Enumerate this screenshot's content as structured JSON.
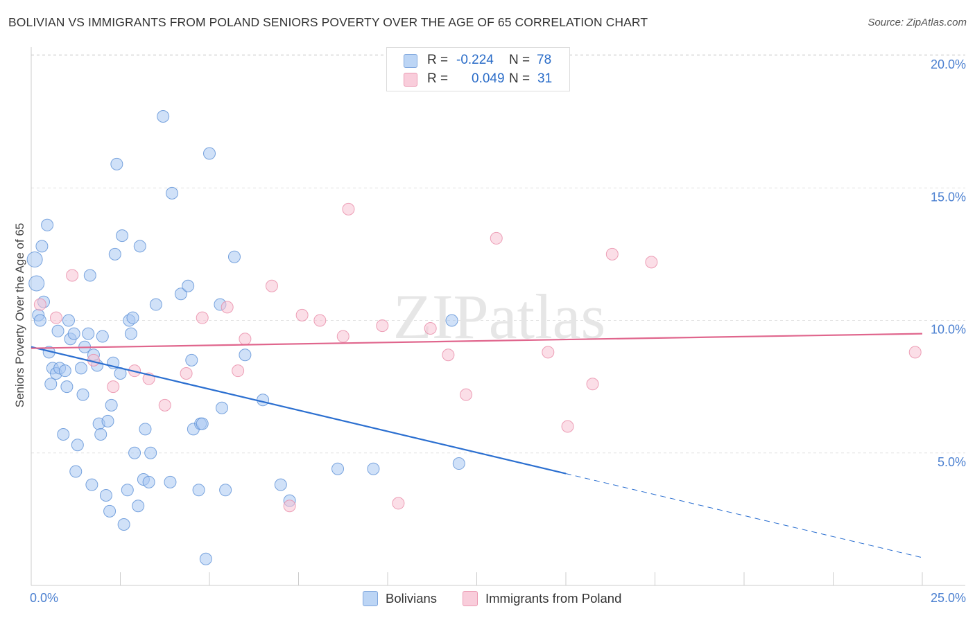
{
  "chart_data": {
    "type": "scatter",
    "title": "BOLIVIAN VS IMMIGRANTS FROM POLAND SENIORS POVERTY OVER THE AGE OF 65 CORRELATION CHART",
    "source": "Source: ZipAtlas.com",
    "xlabel": "",
    "ylabel": "Seniors Poverty Over the Age of 65",
    "xlim": [
      0,
      25
    ],
    "ylim": [
      0,
      20
    ],
    "x_tick_labels": [
      "0.0%",
      "25.0%"
    ],
    "y_ticks": [
      {
        "value": 20,
        "label": "20.0%"
      },
      {
        "value": 15,
        "label": "15.0%"
      },
      {
        "value": 10,
        "label": "10.0%"
      },
      {
        "value": 5,
        "label": "5.0%"
      }
    ],
    "watermark": "ZIPatlas",
    "legend": [
      {
        "r_label": "R =",
        "r_value": "-0.224",
        "n_label": "N =",
        "n_value": "78"
      },
      {
        "r_label": "R =",
        "r_value": "0.049",
        "n_label": "N =",
        "n_value": "31"
      }
    ],
    "series": [
      {
        "name": "Bolivians",
        "fill": "#a9c8f2",
        "stroke": "#5a8fd6",
        "trend_color": "#2b6fd0",
        "trend": {
          "x0": 0,
          "y0": 9.0,
          "x1": 15.0,
          "y1": 4.22,
          "x_dash_end": 25.0,
          "y_dash_end": 1.05
        },
        "points": [
          [
            0.1,
            12.3
          ],
          [
            0.15,
            11.4
          ],
          [
            0.2,
            10.2
          ],
          [
            0.25,
            10.0
          ],
          [
            0.35,
            10.7
          ],
          [
            0.3,
            12.8
          ],
          [
            0.45,
            13.6
          ],
          [
            0.5,
            8.8
          ],
          [
            0.55,
            7.6
          ],
          [
            0.6,
            8.2
          ],
          [
            0.7,
            8.0
          ],
          [
            0.75,
            9.6
          ],
          [
            0.8,
            8.2
          ],
          [
            0.9,
            5.7
          ],
          [
            0.95,
            8.1
          ],
          [
            1.0,
            7.5
          ],
          [
            1.05,
            10.0
          ],
          [
            1.1,
            9.3
          ],
          [
            1.2,
            9.5
          ],
          [
            1.25,
            4.3
          ],
          [
            1.3,
            5.3
          ],
          [
            1.4,
            8.2
          ],
          [
            1.45,
            7.2
          ],
          [
            1.5,
            9.0
          ],
          [
            1.6,
            9.5
          ],
          [
            1.65,
            11.7
          ],
          [
            1.7,
            3.8
          ],
          [
            1.75,
            8.7
          ],
          [
            1.85,
            8.3
          ],
          [
            1.9,
            6.1
          ],
          [
            1.95,
            5.7
          ],
          [
            2.0,
            9.4
          ],
          [
            2.1,
            3.4
          ],
          [
            2.15,
            6.2
          ],
          [
            2.2,
            2.8
          ],
          [
            2.25,
            6.8
          ],
          [
            2.3,
            8.4
          ],
          [
            2.35,
            12.5
          ],
          [
            2.4,
            15.9
          ],
          [
            2.5,
            8.0
          ],
          [
            2.55,
            13.2
          ],
          [
            2.6,
            2.3
          ],
          [
            2.7,
            3.6
          ],
          [
            2.75,
            10.0
          ],
          [
            2.8,
            9.5
          ],
          [
            2.85,
            10.1
          ],
          [
            3.0,
            3.0
          ],
          [
            3.05,
            12.8
          ],
          [
            3.15,
            4.0
          ],
          [
            3.2,
            5.9
          ],
          [
            3.3,
            3.9
          ],
          [
            3.35,
            5.0
          ],
          [
            3.5,
            10.6
          ],
          [
            3.7,
            17.7
          ],
          [
            3.9,
            3.9
          ],
          [
            3.95,
            14.8
          ],
          [
            4.2,
            11.0
          ],
          [
            4.4,
            11.3
          ],
          [
            4.5,
            8.5
          ],
          [
            4.55,
            5.9
          ],
          [
            4.7,
            3.6
          ],
          [
            4.75,
            6.1
          ],
          [
            4.8,
            6.1
          ],
          [
            4.9,
            1.0
          ],
          [
            5.0,
            16.3
          ],
          [
            5.3,
            10.6
          ],
          [
            5.35,
            6.7
          ],
          [
            5.45,
            3.6
          ],
          [
            5.7,
            12.4
          ],
          [
            6.0,
            8.7
          ],
          [
            6.5,
            7.0
          ],
          [
            7.0,
            3.8
          ],
          [
            7.25,
            3.2
          ],
          [
            8.6,
            4.4
          ],
          [
            9.6,
            4.4
          ],
          [
            11.8,
            10.0
          ],
          [
            12.0,
            4.6
          ],
          [
            2.9,
            5.0
          ]
        ]
      },
      {
        "name": "Immigrants from Poland",
        "fill": "#f7c3d3",
        "stroke": "#e88aa6",
        "trend_color": "#e0668d",
        "trend": {
          "x0": 0,
          "y0": 8.95,
          "x1": 25.0,
          "y1": 9.5
        },
        "points": [
          [
            0.25,
            10.6
          ],
          [
            0.7,
            10.1
          ],
          [
            1.15,
            11.7
          ],
          [
            1.75,
            8.5
          ],
          [
            2.3,
            7.5
          ],
          [
            2.9,
            8.1
          ],
          [
            3.3,
            7.8
          ],
          [
            3.75,
            6.8
          ],
          [
            4.35,
            8.0
          ],
          [
            4.8,
            10.1
          ],
          [
            5.5,
            10.5
          ],
          [
            5.8,
            8.1
          ],
          [
            6.0,
            9.3
          ],
          [
            6.75,
            11.3
          ],
          [
            7.25,
            3.0
          ],
          [
            7.6,
            10.2
          ],
          [
            8.1,
            10.0
          ],
          [
            8.75,
            9.4
          ],
          [
            8.9,
            14.2
          ],
          [
            9.85,
            9.8
          ],
          [
            10.3,
            3.1
          ],
          [
            11.2,
            9.7
          ],
          [
            11.7,
            8.7
          ],
          [
            12.2,
            7.2
          ],
          [
            13.05,
            13.1
          ],
          [
            14.5,
            8.8
          ],
          [
            15.05,
            6.0
          ],
          [
            15.75,
            7.6
          ],
          [
            16.3,
            12.5
          ],
          [
            17.4,
            12.2
          ],
          [
            24.8,
            8.8
          ]
        ]
      }
    ]
  }
}
